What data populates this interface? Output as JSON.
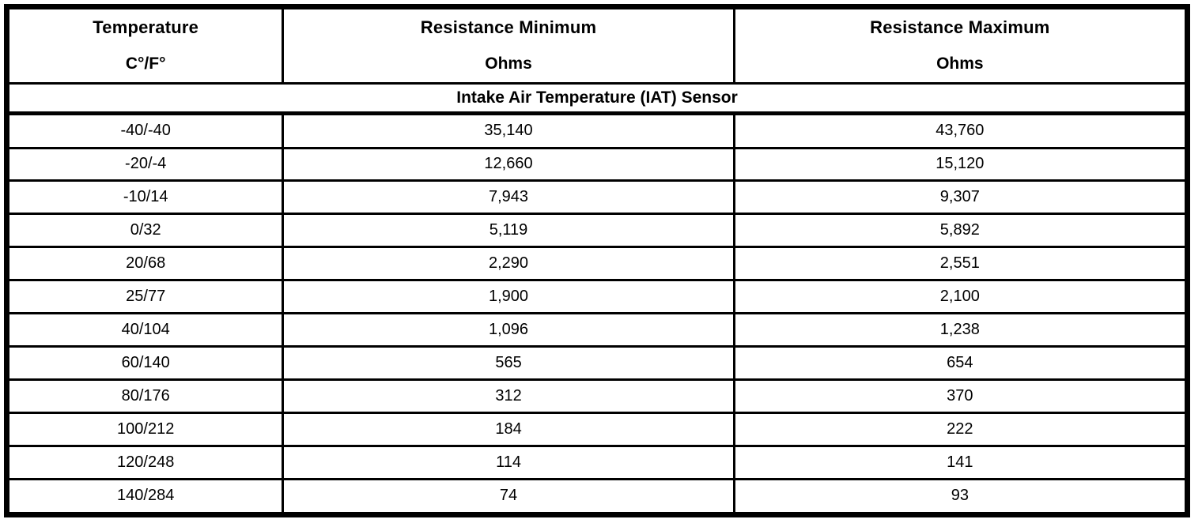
{
  "table": {
    "header": {
      "columns": [
        {
          "title": "Temperature",
          "unit": "C°/F°"
        },
        {
          "title": "Resistance Minimum",
          "unit": "Ohms"
        },
        {
          "title": "Resistance Maximum",
          "unit": "Ohms"
        }
      ]
    },
    "section_title": "Intake Air Temperature (IAT) Sensor",
    "rows": [
      {
        "temperature": "-40/-40",
        "resistance_min": "35,140",
        "resistance_max": "43,760"
      },
      {
        "temperature": "-20/-4",
        "resistance_min": "12,660",
        "resistance_max": "15,120"
      },
      {
        "temperature": "-10/14",
        "resistance_min": "7,943",
        "resistance_max": "9,307"
      },
      {
        "temperature": "0/32",
        "resistance_min": "5,119",
        "resistance_max": "5,892"
      },
      {
        "temperature": "20/68",
        "resistance_min": "2,290",
        "resistance_max": "2,551"
      },
      {
        "temperature": "25/77",
        "resistance_min": "1,900",
        "resistance_max": "2,100"
      },
      {
        "temperature": "40/104",
        "resistance_min": "1,096",
        "resistance_max": "1,238"
      },
      {
        "temperature": "60/140",
        "resistance_min": "565",
        "resistance_max": "654"
      },
      {
        "temperature": "80/176",
        "resistance_min": "312",
        "resistance_max": "370"
      },
      {
        "temperature": "100/212",
        "resistance_min": "184",
        "resistance_max": "222"
      },
      {
        "temperature": "120/248",
        "resistance_min": "114",
        "resistance_max": "141"
      },
      {
        "temperature": "140/284",
        "resistance_min": "74",
        "resistance_max": "93"
      }
    ],
    "colors": {
      "border": "#000000",
      "text": "#000000",
      "background": "#ffffff"
    }
  },
  "chart_data": {
    "type": "table",
    "title": "Intake Air Temperature (IAT) Sensor",
    "columns": [
      "Temperature C°/F°",
      "Resistance Minimum Ohms",
      "Resistance Maximum Ohms"
    ],
    "rows": [
      [
        "-40/-40",
        35140,
        43760
      ],
      [
        "-20/-4",
        12660,
        15120
      ],
      [
        "-10/14",
        7943,
        9307
      ],
      [
        "0/32",
        5119,
        5892
      ],
      [
        "20/68",
        2290,
        2551
      ],
      [
        "25/77",
        1900,
        2100
      ],
      [
        "40/104",
        1096,
        1238
      ],
      [
        "60/140",
        565,
        654
      ],
      [
        "80/176",
        312,
        370
      ],
      [
        "100/212",
        184,
        222
      ],
      [
        "120/248",
        114,
        141
      ],
      [
        "140/284",
        74,
        93
      ]
    ]
  }
}
